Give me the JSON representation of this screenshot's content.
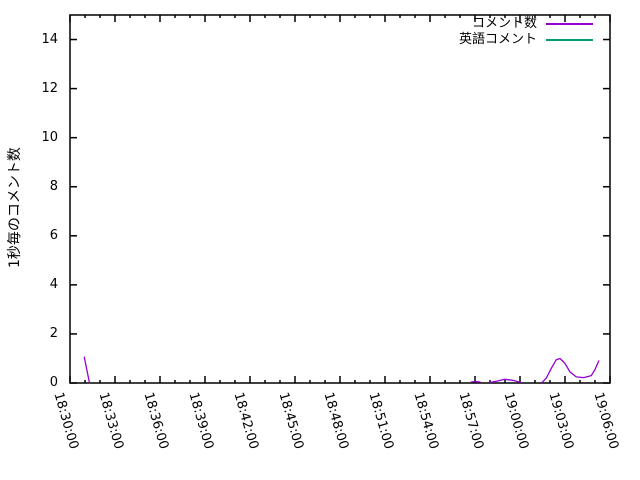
{
  "chart_data": {
    "type": "line",
    "title": "",
    "xlabel": "",
    "ylabel": "1秒毎のコメント数",
    "x_range": [
      "18:30:00",
      "19:06:00"
    ],
    "ylim": [
      0,
      15
    ],
    "yticks": [
      "0",
      "2",
      "4",
      "6",
      "8",
      "10",
      "12",
      "14"
    ],
    "xticks": [
      "18:30:00",
      "18:33:00",
      "18:36:00",
      "18:39:00",
      "18:42:00",
      "18:45:00",
      "18:48:00",
      "18:51:00",
      "18:54:00",
      "18:57:00",
      "19:00:00",
      "19:03:00",
      "19:06:00"
    ],
    "x_tick_interval_s": 180,
    "x_minor_interval_s": 60,
    "grid": "off",
    "legend_position": "top-right-inside",
    "colors": {
      "background": "#ffffff",
      "border": "#000000",
      "text": "#000000"
    },
    "series": [
      {
        "name": "コメント数",
        "color": "#9400d3",
        "segments": [
          [
            [
              "18:30:57",
              1.05
            ],
            [
              "18:31:18",
              0.0
            ]
          ],
          [
            [
              "18:56:45",
              0.04
            ],
            [
              "18:57:00",
              0.06
            ],
            [
              "18:57:20",
              0.04
            ]
          ],
          [
            [
              "18:58:00",
              0.02
            ],
            [
              "18:58:30",
              0.08
            ],
            [
              "18:59:00",
              0.15
            ],
            [
              "18:59:30",
              0.11
            ],
            [
              "19:00:05",
              0.02
            ]
          ],
          [
            [
              "19:01:28",
              0.02
            ],
            [
              "19:01:45",
              0.2
            ],
            [
              "19:02:05",
              0.6
            ],
            [
              "19:02:25",
              0.95
            ],
            [
              "19:02:40",
              1.0
            ],
            [
              "19:03:00",
              0.8
            ],
            [
              "19:03:20",
              0.45
            ],
            [
              "19:03:45",
              0.25
            ],
            [
              "19:04:15",
              0.22
            ],
            [
              "19:04:45",
              0.3
            ],
            [
              "19:05:00",
              0.55
            ],
            [
              "19:05:15",
              0.9
            ]
          ]
        ]
      },
      {
        "name": "英語コメント",
        "color": "#009e73",
        "segments": []
      }
    ]
  }
}
